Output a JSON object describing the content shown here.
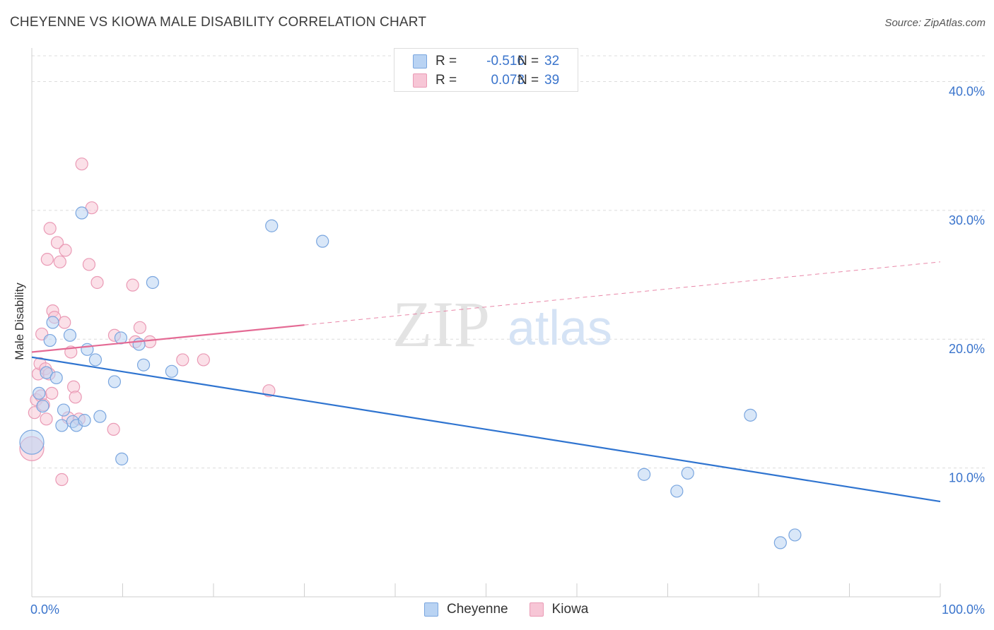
{
  "header": {
    "title": "CHEYENNE VS KIOWA MALE DISABILITY CORRELATION CHART",
    "source": "Source: ZipAtlas.com"
  },
  "watermark": {
    "zip": "ZIP",
    "atlas": "atlas"
  },
  "stats": {
    "cheyenne": {
      "r_label": "R =",
      "r_value": "-0.516",
      "n_label": "N =",
      "n_value": "32"
    },
    "kiowa": {
      "r_label": "R =",
      "r_value": "0.073",
      "n_label": "N =",
      "n_value": "39"
    }
  },
  "colors": {
    "cheyenne_fill": "#b9d3f3",
    "cheyenne_stroke": "#7aa6df",
    "cheyenne_line": "#2f74d0",
    "kiowa_fill": "#f7c6d6",
    "kiowa_stroke": "#ea9ab5",
    "kiowa_line": "#e46a94",
    "tick_label": "#3a74cc",
    "grid": "#dcdcdc"
  },
  "chart_data": {
    "type": "scatter",
    "title": "CHEYENNE VS KIOWA MALE DISABILITY CORRELATION CHART",
    "xlabel": "",
    "ylabel": "Male Disability",
    "xlim": [
      0,
      100
    ],
    "ylim": [
      0,
      42
    ],
    "x_tick_labels": [
      "0.0%",
      "100.0%"
    ],
    "y_ticks": [
      10,
      20,
      30,
      40
    ],
    "y_tick_labels": [
      "10.0%",
      "20.0%",
      "30.0%",
      "40.0%"
    ],
    "legend": [
      "Cheyenne",
      "Kiowa"
    ],
    "series": [
      {
        "name": "Cheyenne",
        "trend": {
          "x0": 0,
          "y0": 18.6,
          "x1": 100,
          "y1": 7.4,
          "dashed_from": null
        },
        "points": [
          {
            "x": 0.0,
            "y": 12.0,
            "big": true
          },
          {
            "x": 0.8,
            "y": 15.8
          },
          {
            "x": 1.2,
            "y": 14.8
          },
          {
            "x": 1.6,
            "y": 17.4
          },
          {
            "x": 2.0,
            "y": 19.9
          },
          {
            "x": 2.3,
            "y": 21.3
          },
          {
            "x": 2.7,
            "y": 17.0
          },
          {
            "x": 3.3,
            "y": 13.3
          },
          {
            "x": 3.5,
            "y": 14.5
          },
          {
            "x": 4.2,
            "y": 20.3
          },
          {
            "x": 4.5,
            "y": 13.6
          },
          {
            "x": 4.9,
            "y": 13.3
          },
          {
            "x": 5.5,
            "y": 29.8
          },
          {
            "x": 5.8,
            "y": 13.7
          },
          {
            "x": 6.1,
            "y": 19.2
          },
          {
            "x": 7.0,
            "y": 18.4
          },
          {
            "x": 7.5,
            "y": 14.0
          },
          {
            "x": 9.1,
            "y": 16.7
          },
          {
            "x": 9.8,
            "y": 20.1
          },
          {
            "x": 9.9,
            "y": 10.7
          },
          {
            "x": 11.8,
            "y": 19.6
          },
          {
            "x": 12.3,
            "y": 18.0
          },
          {
            "x": 13.3,
            "y": 24.4
          },
          {
            "x": 15.4,
            "y": 17.5
          },
          {
            "x": 26.4,
            "y": 28.8
          },
          {
            "x": 32.0,
            "y": 27.6
          },
          {
            "x": 67.4,
            "y": 9.5
          },
          {
            "x": 71.0,
            "y": 8.2
          },
          {
            "x": 72.2,
            "y": 9.6
          },
          {
            "x": 79.1,
            "y": 14.1
          },
          {
            "x": 82.4,
            "y": 4.2
          },
          {
            "x": 84.0,
            "y": 4.8
          }
        ]
      },
      {
        "name": "Kiowa",
        "trend": {
          "x0": 0,
          "y0": 19.0,
          "x1": 100,
          "y1": 26.0,
          "dashed_from": 30
        },
        "points": [
          {
            "x": 0.0,
            "y": 11.5,
            "big": true
          },
          {
            "x": 0.3,
            "y": 14.3
          },
          {
            "x": 0.5,
            "y": 15.3
          },
          {
            "x": 0.7,
            "y": 17.3
          },
          {
            "x": 0.9,
            "y": 18.1
          },
          {
            "x": 1.0,
            "y": 15.6
          },
          {
            "x": 1.1,
            "y": 20.4
          },
          {
            "x": 1.3,
            "y": 14.9
          },
          {
            "x": 1.5,
            "y": 17.7
          },
          {
            "x": 1.6,
            "y": 13.8
          },
          {
            "x": 1.7,
            "y": 26.2
          },
          {
            "x": 2.0,
            "y": 28.6
          },
          {
            "x": 2.2,
            "y": 15.8
          },
          {
            "x": 2.3,
            "y": 22.2
          },
          {
            "x": 2.5,
            "y": 21.7
          },
          {
            "x": 2.8,
            "y": 27.5
          },
          {
            "x": 3.1,
            "y": 26.0
          },
          {
            "x": 3.3,
            "y": 9.1
          },
          {
            "x": 3.7,
            "y": 26.9
          },
          {
            "x": 4.0,
            "y": 13.9
          },
          {
            "x": 4.3,
            "y": 19.0
          },
          {
            "x": 4.6,
            "y": 16.3
          },
          {
            "x": 4.8,
            "y": 15.5
          },
          {
            "x": 5.2,
            "y": 13.8
          },
          {
            "x": 5.5,
            "y": 33.6
          },
          {
            "x": 6.3,
            "y": 25.8
          },
          {
            "x": 6.6,
            "y": 30.2
          },
          {
            "x": 7.2,
            "y": 24.4
          },
          {
            "x": 9.0,
            "y": 13.0
          },
          {
            "x": 9.1,
            "y": 20.3
          },
          {
            "x": 11.1,
            "y": 24.2
          },
          {
            "x": 11.4,
            "y": 19.8
          },
          {
            "x": 11.9,
            "y": 20.9
          },
          {
            "x": 13.0,
            "y": 19.8
          },
          {
            "x": 16.6,
            "y": 18.4
          },
          {
            "x": 18.9,
            "y": 18.4
          },
          {
            "x": 26.1,
            "y": 16.0
          },
          {
            "x": 3.6,
            "y": 21.3
          },
          {
            "x": 1.9,
            "y": 17.3
          }
        ]
      }
    ]
  }
}
